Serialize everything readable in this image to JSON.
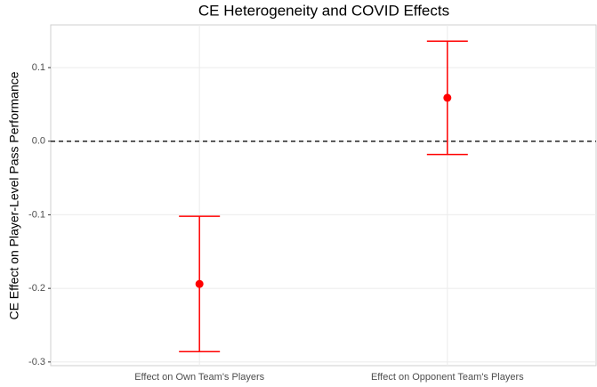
{
  "chart_data": {
    "type": "errorbar",
    "title": "CE Heterogeneity and COVID Effects",
    "y_label": "CE Effect on Player-Level Pass Performance",
    "categories": [
      "Effect on Own Team's Players",
      "Effect on Opponent Team's Players"
    ],
    "values": [
      -0.194,
      0.059
    ],
    "errors": [
      0.092,
      0.077
    ],
    "color": "#ff0000",
    "hline": 0,
    "ylim": [
      -0.305,
      0.158
    ],
    "yticks": [
      -0.3,
      -0.2,
      -0.1,
      {
        "value": 0,
        "label": "0.0"
      },
      0.1
    ],
    "grid": true
  }
}
